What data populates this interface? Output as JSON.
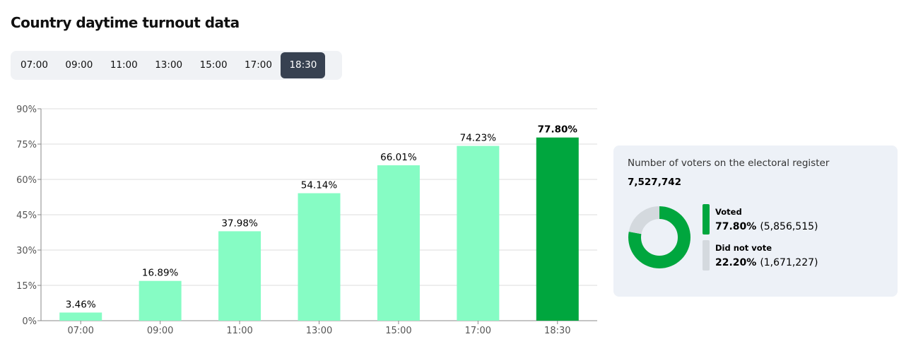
{
  "title": "Country daytime turnout data",
  "tabs": [
    "07:00",
    "09:00",
    "11:00",
    "13:00",
    "15:00",
    "17:00",
    "18:30"
  ],
  "active_tab": 6,
  "chart_data": [
    {
      "type": "bar",
      "categories": [
        "07:00",
        "09:00",
        "11:00",
        "13:00",
        "15:00",
        "17:00",
        "18:30"
      ],
      "values": [
        3.46,
        16.89,
        37.98,
        54.14,
        66.01,
        74.23,
        77.8
      ],
      "value_labels": [
        "3.46%",
        "16.89%",
        "37.98%",
        "54.14%",
        "66.01%",
        "74.23%",
        "77.80%"
      ],
      "colors": [
        "#86fcc4",
        "#86fcc4",
        "#86fcc4",
        "#86fcc4",
        "#86fcc4",
        "#86fcc4",
        "#00a63e"
      ],
      "ylim": [
        0,
        90
      ],
      "yticks": [
        {
          "value": 0,
          "label": "0%"
        },
        {
          "value": 15,
          "label": "15%"
        },
        {
          "value": 30,
          "label": "30%"
        },
        {
          "value": 45,
          "label": "45%"
        },
        {
          "value": 60,
          "label": "60%"
        },
        {
          "value": 75,
          "label": "75%"
        },
        {
          "value": 90,
          "label": "90%"
        }
      ],
      "grid": true
    },
    {
      "type": "donut",
      "title": "Number of voters on the electoral register",
      "subtitle": "7,527,742",
      "categories": [
        "Voted",
        "Did not vote"
      ],
      "values": [
        77.8,
        22.2
      ],
      "value_labels": [
        "77.80%",
        "22.20%"
      ],
      "counts": [
        "(5,856,515)",
        "(1,671,227)"
      ],
      "colors": [
        "#00a63e",
        "#d4d9de"
      ]
    }
  ]
}
